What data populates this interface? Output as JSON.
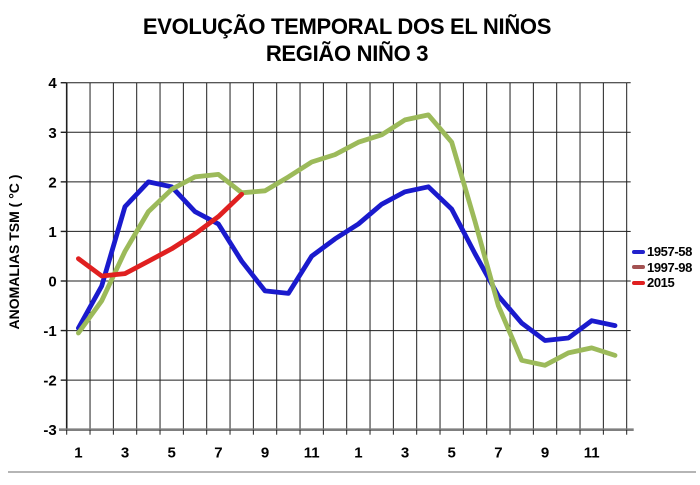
{
  "title": {
    "line1": "EVOLUÇÃO TEMPORAL DOS EL NIÑOS",
    "line2": "REGIÃO NIÑO 3"
  },
  "y_axis_title": "ANOMALIAS TSM ( °C )",
  "chart_data": {
    "type": "line",
    "title": "EVOLUÇÃO TEMPORAL DOS EL NIÑOS",
    "subtitle": "REGIÃO NIÑO 3",
    "ylabel": "ANOMALIAS TSM ( °C )",
    "xlabel": "",
    "x_months": 24,
    "x_tick_months": [
      1,
      3,
      5,
      7,
      9,
      11,
      13,
      15,
      17,
      19,
      21,
      23
    ],
    "x_tick_labels": [
      "1",
      "3",
      "5",
      "7",
      "9",
      "11",
      "1",
      "3",
      "5",
      "7",
      "9",
      "11"
    ],
    "ylim": [
      -3,
      4
    ],
    "y_ticks": [
      4,
      3,
      2,
      1,
      0,
      -1,
      -2,
      -3
    ],
    "grid": true,
    "legend_position": "right",
    "series": [
      {
        "name": "1957-58",
        "color": "#1a1acd",
        "legend_color": "#2222cc",
        "values": [
          -0.95,
          -0.1,
          1.5,
          2.0,
          1.9,
          1.4,
          1.15,
          0.4,
          -0.2,
          -0.25,
          0.5,
          0.85,
          1.15,
          1.55,
          1.8,
          1.9,
          1.45,
          0.55,
          -0.3,
          -0.85,
          -1.2,
          -1.15,
          -0.8,
          -0.9
        ]
      },
      {
        "name": "1997-98",
        "color": "#9cba5a",
        "legend_color": "#a35252",
        "values": [
          -1.05,
          -0.4,
          0.6,
          1.4,
          1.85,
          2.1,
          2.15,
          1.78,
          1.82,
          2.1,
          2.4,
          2.55,
          2.8,
          2.95,
          3.25,
          3.35,
          2.8,
          1.2,
          -0.5,
          -1.6,
          -1.7,
          -1.45,
          -1.35,
          -1.5
        ]
      },
      {
        "name": "2015",
        "color": "#e02020",
        "legend_color": "#e02020",
        "values": [
          0.45,
          0.1,
          0.15,
          0.4,
          0.65,
          0.95,
          1.3,
          1.75
        ]
      }
    ]
  }
}
